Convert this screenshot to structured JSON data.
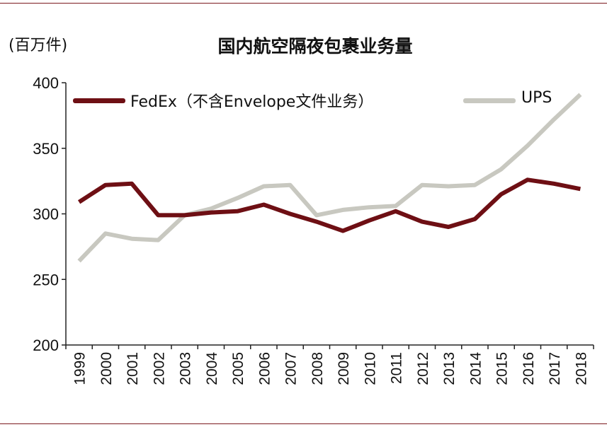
{
  "header": {
    "unit_label": "(百万件)",
    "title": "国内航空隔夜包裹业务量"
  },
  "colors": {
    "rule": "#7b1a1f",
    "fedex": "#6e0f14",
    "ups": "#c8c8c0",
    "axis": "#222222"
  },
  "chart_data": {
    "type": "line",
    "title": "国内航空隔夜包裹业务量",
    "ylabel": "(百万件)",
    "xlabel": "",
    "ylim": [
      200,
      400
    ],
    "yticks": [
      200,
      250,
      300,
      350,
      400
    ],
    "grid": false,
    "legend_position": "top",
    "x": [
      "1999",
      "2000",
      "2001",
      "2002",
      "2003",
      "2004",
      "2005",
      "2006",
      "2007",
      "2008",
      "2009",
      "2010",
      "2011",
      "2012",
      "2013",
      "2014",
      "2015",
      "2016",
      "2017",
      "2018"
    ],
    "series": [
      {
        "name": "FedEx（不含Envelope文件业务）",
        "color": "#6e0f14",
        "values": [
          309,
          322,
          323,
          299,
          299,
          301,
          302,
          307,
          300,
          294,
          287,
          295,
          302,
          294,
          290,
          296,
          315,
          326,
          323,
          319
        ]
      },
      {
        "name": "UPS",
        "color": "#c8c8c0",
        "values": [
          264,
          285,
          281,
          280,
          299,
          304,
          312,
          321,
          322,
          299,
          303,
          305,
          306,
          322,
          321,
          322,
          334,
          352,
          372,
          391
        ]
      }
    ]
  }
}
